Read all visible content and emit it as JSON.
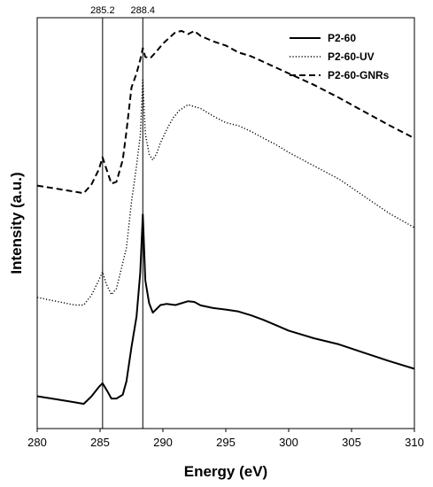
{
  "chart_data": {
    "type": "line",
    "title": "",
    "xlabel": "Energy (eV)",
    "ylabel": "Intensity (a.u.)",
    "xlim": [
      280,
      310
    ],
    "ylim": [
      0,
      1
    ],
    "x_ticks": [
      280,
      285,
      290,
      295,
      300,
      305,
      310
    ],
    "y_ticks_shown": false,
    "grid": false,
    "legend_position": "top-right",
    "annotations": [
      {
        "label": "285.2",
        "x": 285.2
      },
      {
        "label": "288.4",
        "x": 288.4
      }
    ],
    "series": [
      {
        "name": "P2-60",
        "style": "solid",
        "x": [
          280.0,
          281.5,
          283.0,
          283.7,
          284.3,
          284.9,
          285.2,
          285.6,
          285.9,
          286.3,
          286.8,
          287.1,
          287.5,
          287.9,
          288.2,
          288.4,
          288.6,
          288.9,
          289.2,
          289.5,
          289.8,
          290.3,
          291.0,
          292.0,
          292.5,
          293.0,
          294.0,
          295.0,
          296.0,
          297.0,
          298.0,
          299.0,
          300.0,
          302.0,
          304.0,
          306.0,
          308.0,
          310.0
        ],
        "values": [
          0.036,
          0.028,
          0.02,
          0.016,
          0.035,
          0.06,
          0.07,
          0.048,
          0.03,
          0.03,
          0.04,
          0.075,
          0.165,
          0.245,
          0.36,
          0.512,
          0.34,
          0.28,
          0.255,
          0.265,
          0.275,
          0.278,
          0.275,
          0.285,
          0.283,
          0.274,
          0.267,
          0.263,
          0.258,
          0.248,
          0.236,
          0.222,
          0.208,
          0.188,
          0.172,
          0.15,
          0.128,
          0.108
        ]
      },
      {
        "name": "P2-60-UV",
        "style": "dotted",
        "x": [
          280.0,
          281.5,
          283.0,
          283.7,
          284.3,
          284.9,
          285.2,
          285.5,
          285.9,
          286.3,
          286.8,
          287.1,
          287.5,
          287.9,
          288.2,
          288.4,
          288.6,
          288.9,
          289.2,
          289.5,
          289.8,
          290.3,
          290.8,
          291.3,
          292.0,
          292.5,
          293.0,
          294.0,
          295.0,
          296.0,
          297.0,
          298.0,
          299.0,
          300.0,
          302.0,
          304.0,
          306.0,
          308.0,
          310.0
        ],
        "values": [
          0.295,
          0.285,
          0.275,
          0.275,
          0.3,
          0.34,
          0.362,
          0.33,
          0.302,
          0.318,
          0.385,
          0.425,
          0.545,
          0.64,
          0.72,
          0.865,
          0.725,
          0.67,
          0.655,
          0.672,
          0.7,
          0.735,
          0.765,
          0.785,
          0.8,
          0.795,
          0.79,
          0.77,
          0.753,
          0.745,
          0.73,
          0.712,
          0.695,
          0.675,
          0.64,
          0.605,
          0.56,
          0.515,
          0.478
        ]
      },
      {
        "name": "P2-60-GNRs",
        "style": "dashed",
        "x": [
          280.0,
          281.5,
          283.0,
          283.7,
          284.3,
          284.9,
          285.2,
          285.5,
          285.9,
          286.3,
          286.8,
          287.1,
          287.5,
          287.9,
          288.2,
          288.4,
          288.6,
          289.0,
          289.5,
          290.0,
          290.5,
          291.0,
          291.5,
          292.0,
          292.5,
          293.0,
          294.0,
          295.0,
          296.0,
          297.0,
          298.0,
          299.0,
          300.0,
          302.0,
          304.0,
          306.0,
          308.0,
          310.0
        ],
        "values": [
          0.588,
          0.58,
          0.572,
          0.568,
          0.59,
          0.63,
          0.662,
          0.632,
          0.593,
          0.598,
          0.655,
          0.73,
          0.845,
          0.882,
          0.918,
          0.948,
          0.925,
          0.922,
          0.94,
          0.96,
          0.975,
          0.99,
          0.993,
          0.985,
          0.993,
          0.98,
          0.966,
          0.955,
          0.937,
          0.927,
          0.912,
          0.897,
          0.882,
          0.852,
          0.818,
          0.782,
          0.746,
          0.712
        ]
      }
    ]
  }
}
